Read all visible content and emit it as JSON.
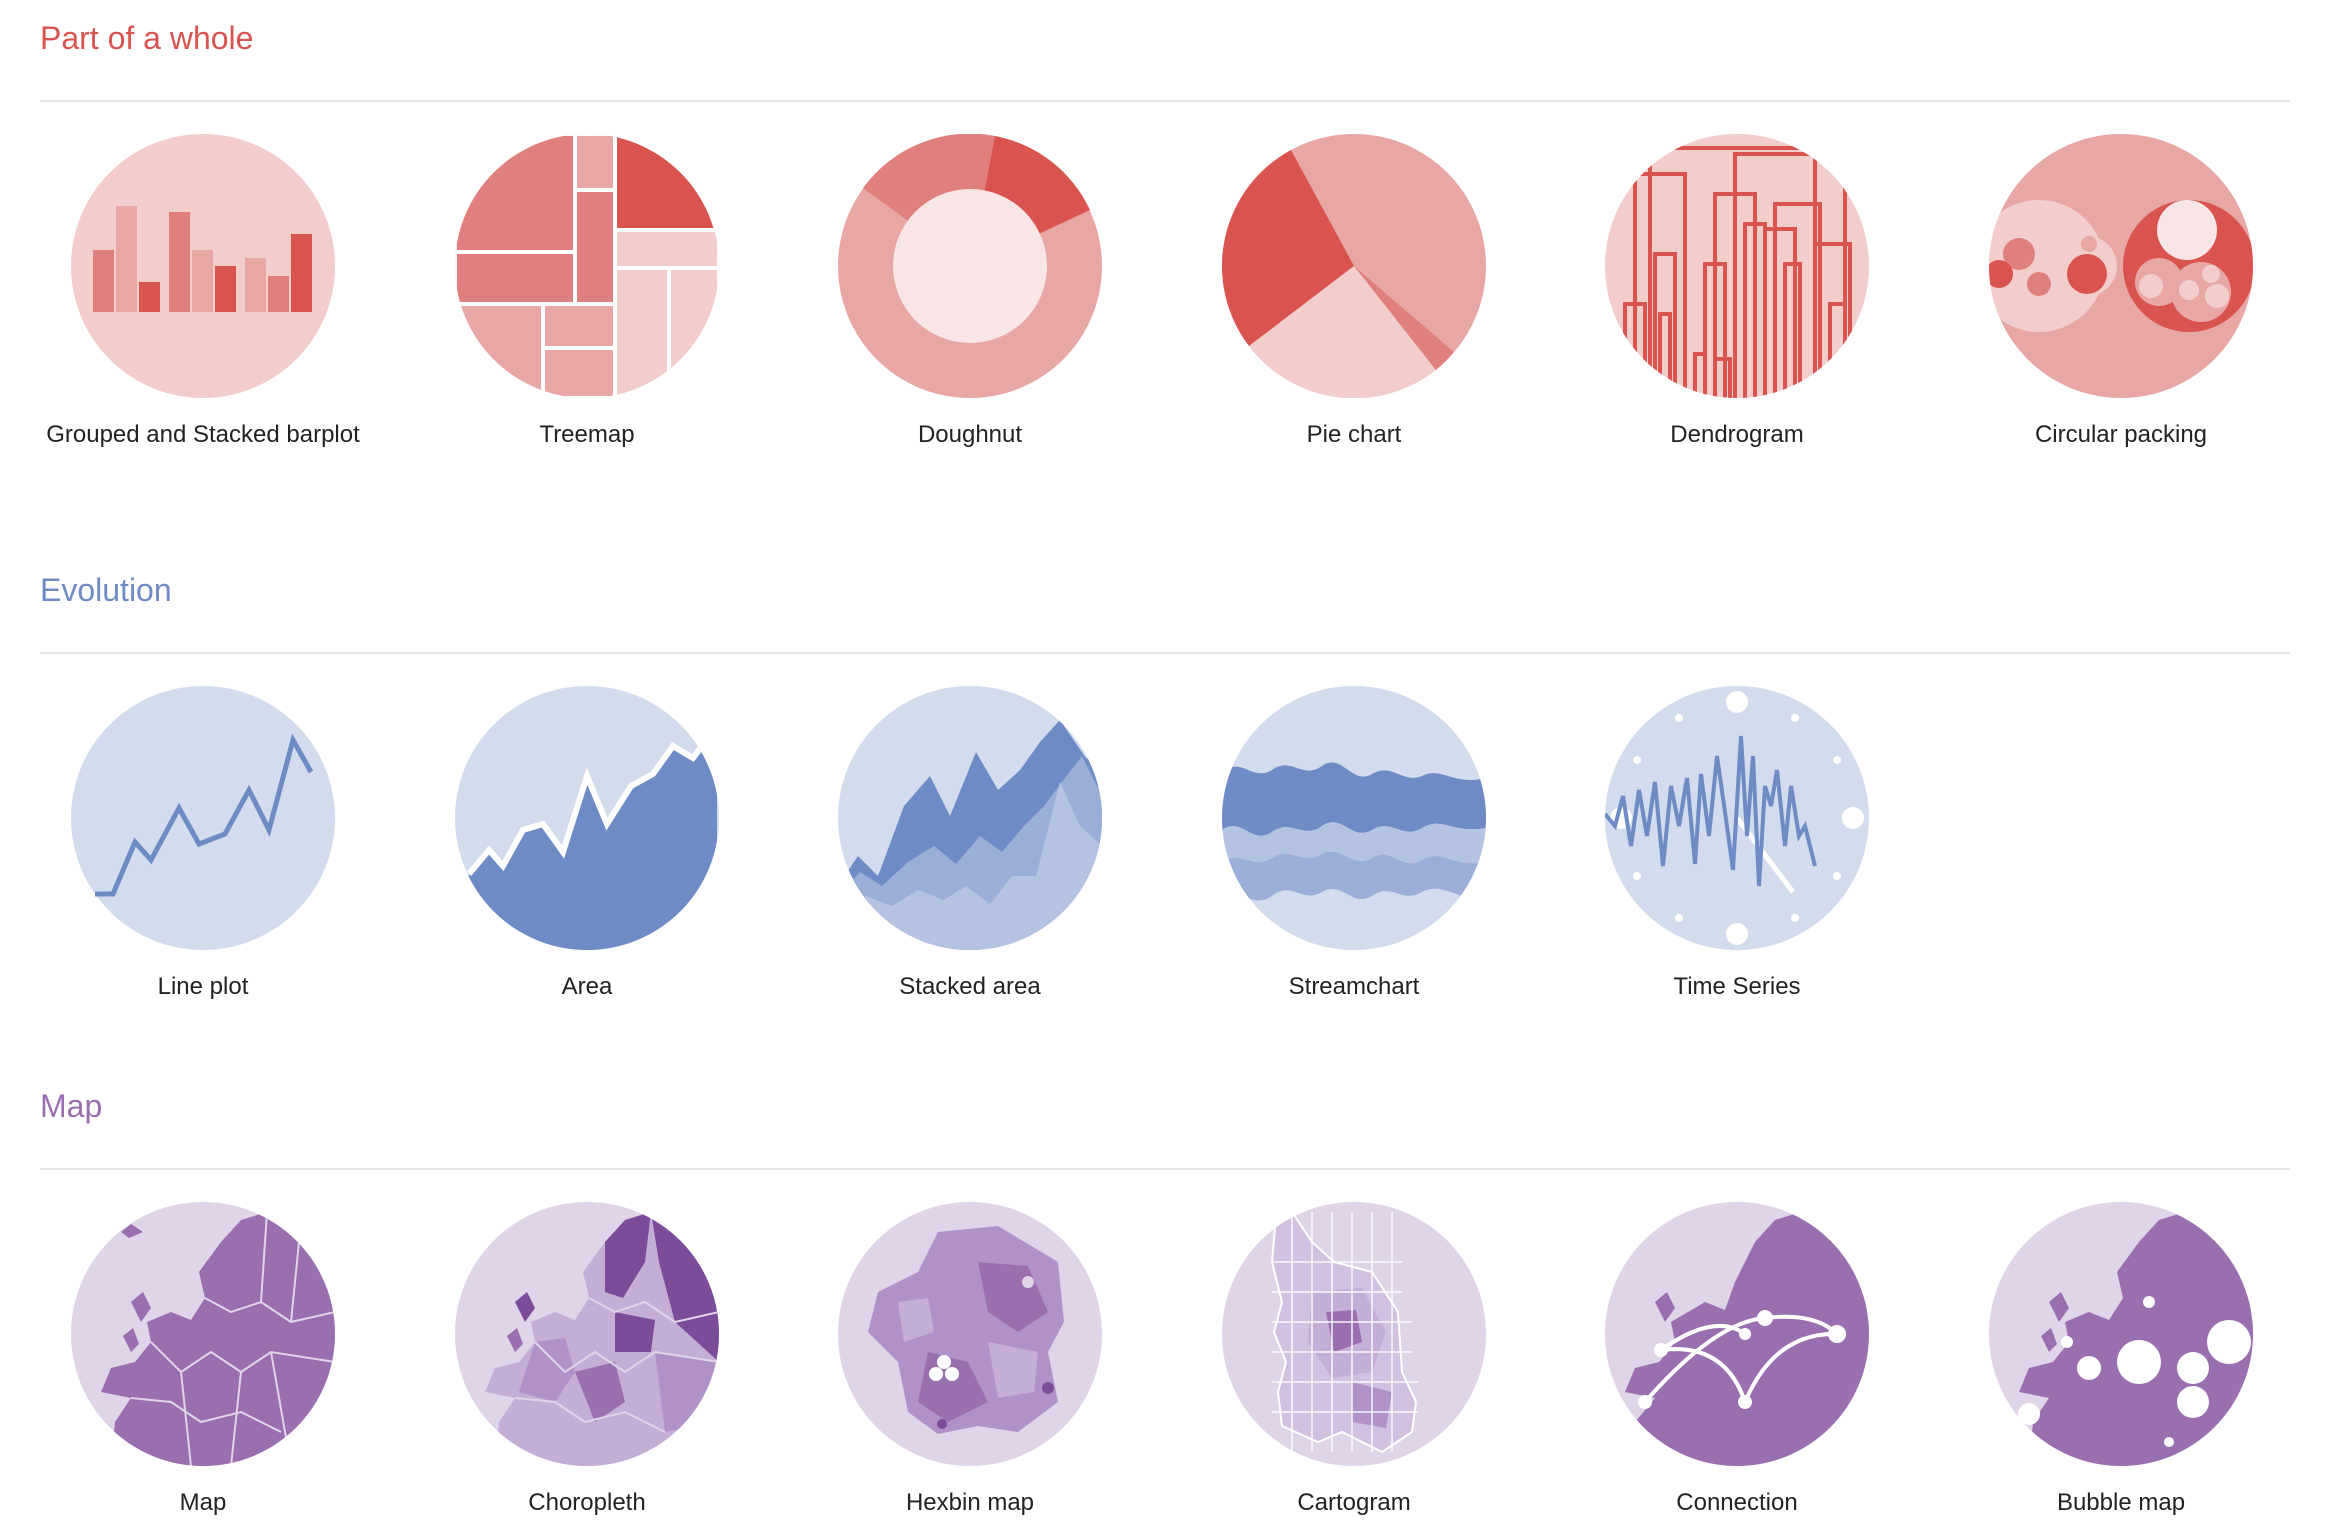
{
  "sections": [
    {
      "title": "Part of a whole",
      "color": "#d9534f",
      "items": [
        {
          "label": "Grouped and Stacked barplot",
          "icon": "grouped-stacked-barplot-icon"
        },
        {
          "label": "Treemap",
          "icon": "treemap-icon"
        },
        {
          "label": "Doughnut",
          "icon": "doughnut-icon"
        },
        {
          "label": "Pie chart",
          "icon": "pie-chart-icon"
        },
        {
          "label": "Dendrogram",
          "icon": "dendrogram-icon"
        },
        {
          "label": "Circular packing",
          "icon": "circular-packing-icon"
        }
      ]
    },
    {
      "title": "Evolution",
      "color": "#6f8bc6",
      "items": [
        {
          "label": "Line plot",
          "icon": "line-plot-icon"
        },
        {
          "label": "Area",
          "icon": "area-icon"
        },
        {
          "label": "Stacked area",
          "icon": "stacked-area-icon"
        },
        {
          "label": "Streamchart",
          "icon": "streamchart-icon"
        },
        {
          "label": "Time Series",
          "icon": "time-series-icon"
        }
      ]
    },
    {
      "title": "Map",
      "color": "#9a6fb0",
      "items": [
        {
          "label": "Map",
          "icon": "map-icon"
        },
        {
          "label": "Choropleth",
          "icon": "choropleth-icon"
        },
        {
          "label": "Hexbin map",
          "icon": "hexbin-map-icon"
        },
        {
          "label": "Cartogram",
          "icon": "cartogram-icon"
        },
        {
          "label": "Connection",
          "icon": "connection-icon"
        },
        {
          "label": "Bubble map",
          "icon": "bubble-map-icon"
        }
      ]
    }
  ]
}
